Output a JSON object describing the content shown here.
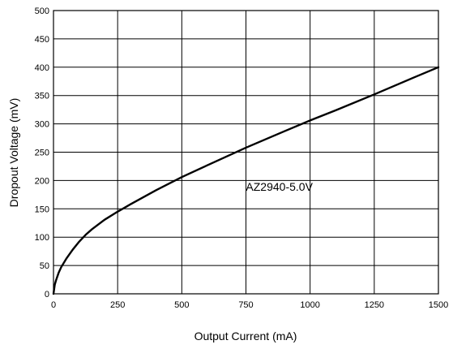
{
  "chart_data": {
    "type": "line",
    "xlabel": "Output Current (mA)",
    "ylabel": "Dropout Voltage (mV)",
    "xlim": [
      0,
      1500
    ],
    "ylim": [
      0,
      500
    ],
    "xticks": [
      0,
      250,
      500,
      750,
      1000,
      1250,
      1500
    ],
    "yticks": [
      0,
      50,
      100,
      150,
      200,
      250,
      300,
      350,
      400,
      450,
      500
    ],
    "grid": true,
    "annotations": [
      {
        "text": "AZ2940-5.0V",
        "x": 880,
        "y": 182
      }
    ],
    "series": [
      {
        "x": [
          0,
          5,
          10,
          20,
          30,
          50,
          75,
          100,
          125,
          150,
          200,
          250,
          300,
          400,
          500,
          600,
          750,
          900,
          1000,
          1100,
          1250,
          1400,
          1500
        ],
        "y": [
          0,
          16,
          24,
          37,
          47,
          62,
          78,
          92,
          104,
          114,
          131,
          145,
          158,
          183,
          206,
          227,
          258,
          287,
          306,
          324,
          352,
          381,
          400
        ]
      }
    ]
  }
}
